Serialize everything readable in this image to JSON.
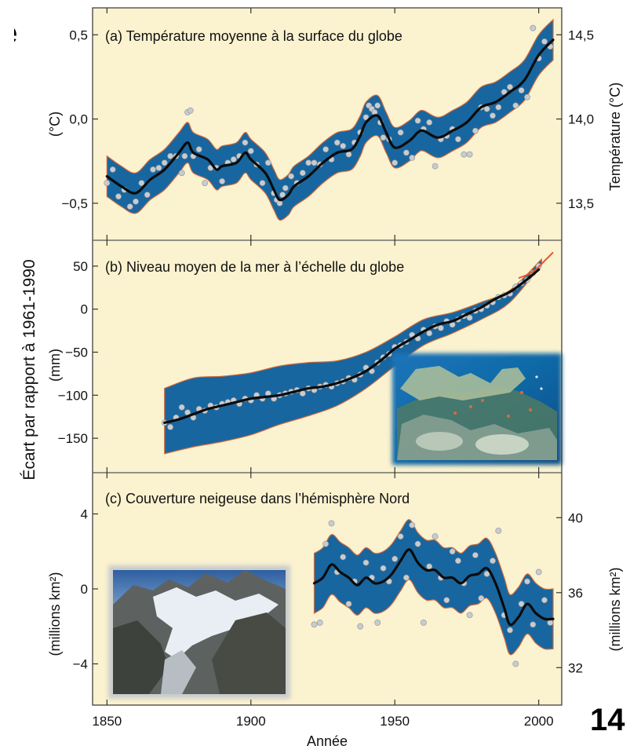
{
  "page_number": "14",
  "corner_text": "e",
  "colors": {
    "panel_bg": "#fbf2cf",
    "band": "#1766a0",
    "band_edge": "#d26a3a",
    "curve": "#0b0b0b",
    "points": "#c8ccd0",
    "grid": "#555555"
  },
  "chart_data": [
    {
      "type": "line",
      "title": "(a) Température moyenne à la surface du globe",
      "ylabel": "(°C)",
      "ylabel_right": "Température (°C)",
      "xlim": [
        1845,
        2008
      ],
      "ylim": [
        -0.72,
        0.66
      ],
      "yticks": [
        -0.5,
        0.0,
        0.5
      ],
      "ytick_labels": [
        "−0,5",
        "0,0",
        "0,5"
      ],
      "yticks_right": [
        13.5,
        14.0,
        14.5
      ],
      "ytick_labels_right": [
        "13,5",
        "14,0",
        "14,5"
      ],
      "right_offset": 14.0,
      "band_halfwidth": 0.12,
      "smooth": {
        "x": [
          1850,
          1855,
          1860,
          1865,
          1870,
          1875,
          1878,
          1880,
          1885,
          1888,
          1890,
          1895,
          1898,
          1900,
          1905,
          1908,
          1910,
          1913,
          1915,
          1920,
          1925,
          1930,
          1935,
          1938,
          1940,
          1944,
          1947,
          1950,
          1955,
          1958,
          1960,
          1965,
          1970,
          1975,
          1980,
          1985,
          1990,
          1995,
          2000,
          2005
        ],
        "y": [
          -0.34,
          -0.4,
          -0.44,
          -0.36,
          -0.3,
          -0.2,
          -0.14,
          -0.2,
          -0.24,
          -0.3,
          -0.28,
          -0.26,
          -0.2,
          -0.24,
          -0.32,
          -0.42,
          -0.48,
          -0.45,
          -0.4,
          -0.34,
          -0.26,
          -0.2,
          -0.18,
          -0.1,
          -0.02,
          0.02,
          -0.08,
          -0.17,
          -0.13,
          -0.08,
          -0.07,
          -0.11,
          -0.07,
          -0.02,
          0.07,
          0.1,
          0.16,
          0.23,
          0.38,
          0.47
        ]
      },
      "points": {
        "x": [
          1850,
          1852,
          1854,
          1856,
          1858,
          1860,
          1862,
          1864,
          1866,
          1868,
          1870,
          1872,
          1874,
          1876,
          1877,
          1878,
          1879,
          1880,
          1882,
          1884,
          1886,
          1888,
          1890,
          1892,
          1894,
          1896,
          1898,
          1900,
          1902,
          1904,
          1906,
          1908,
          1909,
          1910,
          1911,
          1912,
          1914,
          1916,
          1918,
          1920,
          1922,
          1924,
          1926,
          1928,
          1930,
          1932,
          1934,
          1936,
          1938,
          1940,
          1941,
          1942,
          1943,
          1944,
          1945,
          1946,
          1948,
          1950,
          1952,
          1954,
          1956,
          1958,
          1960,
          1962,
          1964,
          1966,
          1968,
          1970,
          1972,
          1974,
          1976,
          1978,
          1980,
          1982,
          1984,
          1986,
          1988,
          1990,
          1992,
          1994,
          1996,
          1998,
          2000,
          2002,
          2004
        ],
        "y": [
          -0.38,
          -0.3,
          -0.46,
          -0.42,
          -0.52,
          -0.49,
          -0.38,
          -0.45,
          -0.3,
          -0.29,
          -0.26,
          -0.22,
          -0.22,
          -0.32,
          -0.22,
          0.04,
          0.05,
          -0.22,
          -0.18,
          -0.38,
          -0.29,
          -0.29,
          -0.37,
          -0.26,
          -0.24,
          -0.22,
          -0.14,
          -0.19,
          -0.27,
          -0.38,
          -0.26,
          -0.44,
          -0.48,
          -0.5,
          -0.45,
          -0.41,
          -0.34,
          -0.38,
          -0.32,
          -0.26,
          -0.26,
          -0.27,
          -0.18,
          -0.24,
          -0.14,
          -0.16,
          -0.21,
          -0.14,
          -0.08,
          0.01,
          0.08,
          0.06,
          0.04,
          0.08,
          -0.02,
          -0.11,
          -0.12,
          -0.26,
          -0.08,
          -0.2,
          -0.23,
          -0.01,
          -0.06,
          -0.02,
          -0.28,
          -0.12,
          -0.1,
          -0.06,
          -0.12,
          -0.21,
          -0.21,
          -0.07,
          0.07,
          0.06,
          0.02,
          0.07,
          0.16,
          0.19,
          0.08,
          0.17,
          0.13,
          0.54,
          0.36,
          0.46,
          0.43
        ]
      }
    },
    {
      "type": "line",
      "title": "(b) Niveau moyen de la mer à l’échelle du globe",
      "ylabel": "(mm)",
      "xlim": [
        1845,
        2008
      ],
      "ylim": [
        -190,
        80
      ],
      "yticks": [
        -150,
        -100,
        -50,
        0,
        50
      ],
      "ytick_labels": [
        "−150",
        "−100",
        "−50",
        "0",
        "50"
      ],
      "band": {
        "x": [
          1870,
          1880,
          1890,
          1900,
          1910,
          1920,
          1930,
          1940,
          1950,
          1960,
          1970,
          1980,
          1990,
          2001
        ],
        "upper": [
          -92,
          -80,
          -78,
          -74,
          -66,
          -62,
          -60,
          -50,
          -32,
          -12,
          -4,
          8,
          22,
          58
        ],
        "lower": [
          -168,
          -160,
          -154,
          -146,
          -134,
          -124,
          -112,
          -92,
          -66,
          -42,
          -28,
          -12,
          8,
          52
        ]
      },
      "smooth": {
        "x": [
          1870,
          1875,
          1880,
          1885,
          1890,
          1895,
          1900,
          1905,
          1910,
          1915,
          1920,
          1925,
          1930,
          1935,
          1940,
          1945,
          1950,
          1955,
          1960,
          1965,
          1970,
          1975,
          1980,
          1985,
          1990,
          1995,
          2000
        ],
        "y": [
          -132,
          -128,
          -122,
          -116,
          -112,
          -108,
          -104,
          -102,
          -100,
          -96,
          -92,
          -90,
          -86,
          -80,
          -72,
          -60,
          -46,
          -36,
          -26,
          -18,
          -14,
          -6,
          2,
          12,
          20,
          32,
          46
        ]
      },
      "points": {
        "x": [
          1870,
          1872,
          1874,
          1876,
          1878,
          1880,
          1882,
          1884,
          1886,
          1888,
          1890,
          1892,
          1894,
          1896,
          1898,
          1900,
          1902,
          1904,
          1906,
          1908,
          1910,
          1912,
          1914,
          1916,
          1918,
          1920,
          1922,
          1924,
          1926,
          1928,
          1930,
          1932,
          1934,
          1936,
          1938,
          1940,
          1942,
          1944,
          1946,
          1948,
          1950,
          1952,
          1954,
          1956,
          1958,
          1960,
          1962,
          1964,
          1966,
          1968,
          1970,
          1972,
          1974,
          1976,
          1978,
          1980,
          1982,
          1984,
          1986,
          1988,
          1990,
          1992,
          1994,
          1996,
          1998,
          2000
        ],
        "y": [
          -132,
          -137,
          -126,
          -114,
          -120,
          -126,
          -116,
          -118,
          -112,
          -114,
          -110,
          -108,
          -106,
          -110,
          -104,
          -106,
          -100,
          -104,
          -98,
          -104,
          -100,
          -98,
          -96,
          -94,
          -98,
          -92,
          -94,
          -90,
          -88,
          -90,
          -86,
          -84,
          -80,
          -82,
          -76,
          -68,
          -72,
          -62,
          -56,
          -52,
          -44,
          -42,
          -38,
          -30,
          -34,
          -24,
          -28,
          -20,
          -22,
          -14,
          -18,
          -12,
          -8,
          -10,
          -2,
          0,
          4,
          8,
          14,
          16,
          18,
          26,
          30,
          34,
          42,
          50
        ]
      },
      "satellite": {
        "x": [
          1993,
          1996,
          1999,
          2002,
          2005
        ],
        "y": [
          36,
          40,
          46,
          56,
          66
        ]
      }
    },
    {
      "type": "line",
      "title": "(c) Couverture neigeuse dans l’hémisphère Nord",
      "ylabel": "(millions km²)",
      "ylabel_right": "(millions km²)",
      "xlim": [
        1845,
        2008
      ],
      "ylim": [
        -6.2,
        6.2
      ],
      "yticks": [
        -4,
        0,
        4
      ],
      "ytick_labels": [
        "−4",
        "0",
        "4"
      ],
      "yticks_right": [
        32,
        36,
        40
      ],
      "ytick_labels_right": [
        "32",
        "36",
        "40"
      ],
      "right_offset": 36.2,
      "band_halfwidth": 1.6,
      "smooth": {
        "x": [
          1922,
          1925,
          1928,
          1931,
          1934,
          1937,
          1940,
          1943,
          1946,
          1949,
          1952,
          1955,
          1958,
          1961,
          1964,
          1967,
          1970,
          1973,
          1976,
          1979,
          1982,
          1985,
          1988,
          1990,
          1993,
          1996,
          1999,
          2002,
          2005
        ],
        "y": [
          0.3,
          0.6,
          1.3,
          0.9,
          0.6,
          0.2,
          0.6,
          0.3,
          0.4,
          0.8,
          1.5,
          2.1,
          1.4,
          1.0,
          1.0,
          0.6,
          0.6,
          0.3,
          0.7,
          0.8,
          1.1,
          0.3,
          -1.0,
          -1.9,
          -1.5,
          -0.8,
          -1.3,
          -1.6,
          -1.6
        ]
      },
      "points": {
        "x": [
          1922,
          1924,
          1926,
          1928,
          1930,
          1932,
          1934,
          1936,
          1938,
          1940,
          1942,
          1944,
          1946,
          1948,
          1950,
          1952,
          1954,
          1956,
          1958,
          1960,
          1962,
          1964,
          1966,
          1968,
          1970,
          1972,
          1974,
          1976,
          1978,
          1980,
          1982,
          1984,
          1986,
          1988,
          1990,
          1992,
          1994,
          1996,
          1998,
          2000,
          2002,
          2004
        ],
        "y": [
          -1.9,
          -1.8,
          2.4,
          3.5,
          0.9,
          1.7,
          -0.8,
          0.4,
          -2.0,
          1.4,
          0.6,
          -1.8,
          1.1,
          0.4,
          1.6,
          2.8,
          0.6,
          3.4,
          2.4,
          -1.8,
          1.2,
          2.8,
          0.6,
          -0.6,
          2.0,
          1.5,
          0.3,
          -1.4,
          1.8,
          -0.5,
          0.8,
          1.5,
          3.1,
          -1.4,
          -2.2,
          -4.0,
          -0.8,
          0.4,
          -1.9,
          0.9,
          -0.6,
          -1.8
        ]
      }
    }
  ],
  "shared": {
    "xticks": [
      1850,
      1900,
      1950,
      2000
    ],
    "xtick_labels": [
      "1850",
      "1900",
      "1950",
      "2000"
    ],
    "xlabel": "Année",
    "left_title": "Écart par rapport à 1961-1990"
  }
}
